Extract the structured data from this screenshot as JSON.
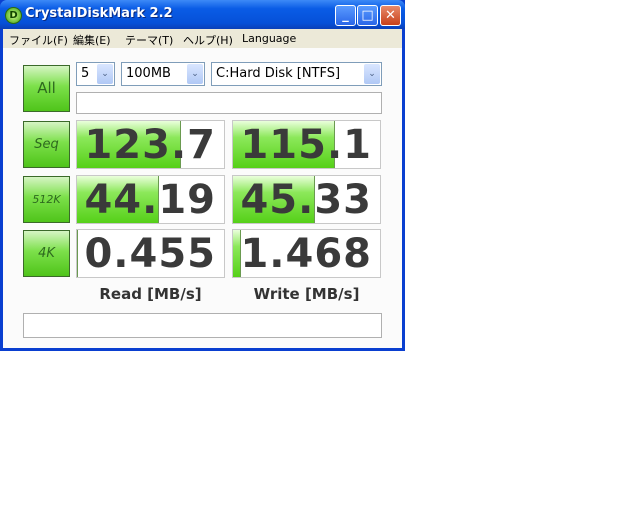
{
  "window": {
    "title": "CrystalDiskMark 2.2",
    "app_icon": "D"
  },
  "title_buttons": {
    "minimize": "_",
    "maximize": "□",
    "close": "✕"
  },
  "menu": [
    "ファイル(F)",
    "編集(E)",
    "テーマ(T)",
    "ヘルプ(H)",
    "Language"
  ],
  "controls": {
    "all_label": "All",
    "count": "5",
    "size": "100MB",
    "drive": "C:Hard Disk [NTFS]",
    "dropdown_arrow": "⌄"
  },
  "tests": [
    {
      "label": "Seq",
      "read": "123.7",
      "write": "115.1",
      "read_fill": 0.7,
      "write_fill": 0.69
    },
    {
      "label": "512K",
      "read": "44.19",
      "write": "45.33",
      "read_fill": 0.55,
      "write_fill": 0.55
    },
    {
      "label": "4K",
      "read": "0.455",
      "write": "1.468",
      "read_fill": 0.0,
      "write_fill": 0.05
    }
  ],
  "columns": {
    "read": "Read [MB/s]",
    "write": "Write [MB/s]"
  },
  "colors": {
    "titlebar": "#0a5ce6",
    "accent_green": "#55d018"
  }
}
